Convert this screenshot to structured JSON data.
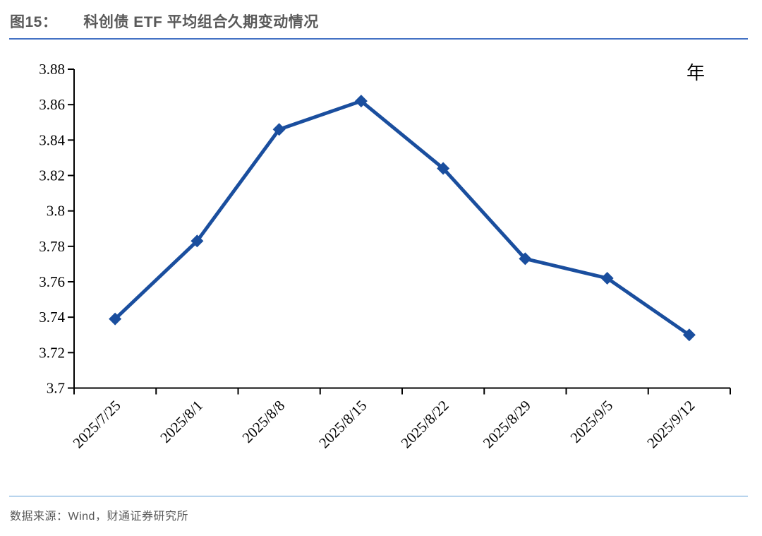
{
  "header": {
    "figure_label": "图15：",
    "title": "科创债 ETF 平均组合久期变动情况"
  },
  "footer": {
    "source": "数据来源：Wind，财通证券研究所"
  },
  "colors": {
    "line": "#1A4E9E",
    "accent_rule": "#4472C4",
    "footer_rule": "#5B9BD5",
    "title_text": "#595959",
    "muted_text": "#595959",
    "axis": "#000000"
  },
  "chart_data": {
    "type": "line",
    "title": "科创债 ETF 平均组合久期变动情况",
    "unit": "年",
    "categories": [
      "2025/7/25",
      "2025/8/1",
      "2025/8/8",
      "2025/8/15",
      "2025/8/22",
      "2025/8/29",
      "2025/9/5",
      "2025/9/12"
    ],
    "values": [
      3.739,
      3.783,
      3.846,
      3.862,
      3.824,
      3.773,
      3.762,
      3.73
    ],
    "ylim": [
      3.7,
      3.88
    ],
    "y_step": 0.02,
    "y_ticks": [
      "3.7",
      "3.72",
      "3.74",
      "3.76",
      "3.78",
      "3.8",
      "3.82",
      "3.84",
      "3.86",
      "3.88"
    ],
    "grid": false,
    "legend": false,
    "marker": "diamond",
    "line_width": 5,
    "x_label_rotation": -45,
    "xlabel": "",
    "ylabel": ""
  }
}
